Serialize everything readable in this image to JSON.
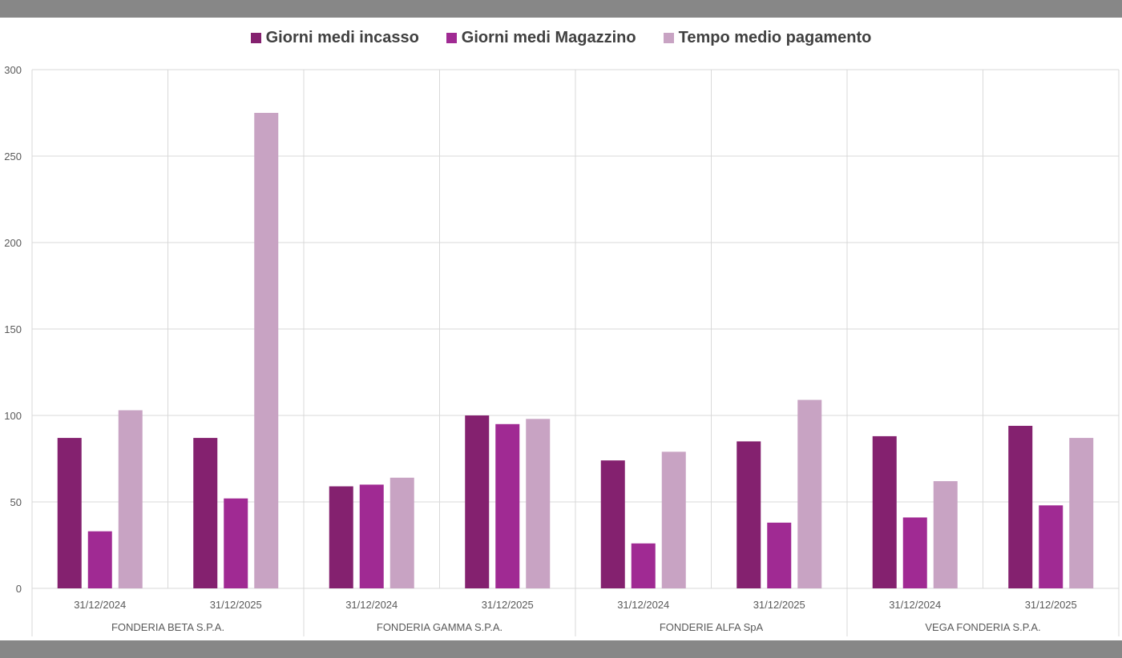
{
  "frame": {
    "bar_color": "#878787"
  },
  "legend": [
    {
      "name": "Giorni medi incasso",
      "color": "#84216f"
    },
    {
      "name": "Giorni medi Magazzino",
      "color": "#a02a93"
    },
    {
      "name": "Tempo medio pagamento",
      "color": "#c8a3c3"
    }
  ],
  "chart_data": {
    "type": "bar",
    "title": "",
    "xlabel": "",
    "ylabel": "",
    "ylim": [
      0,
      300
    ],
    "yticks": [
      0,
      50,
      100,
      150,
      200,
      250,
      300
    ],
    "grid": true,
    "legend_position": "top",
    "groups": [
      {
        "company": "FONDERIA BETA S.P.A.",
        "dates": [
          "31/12/2024",
          "31/12/2025"
        ]
      },
      {
        "company": "FONDERIA GAMMA S.P.A.",
        "dates": [
          "31/12/2024",
          "31/12/2025"
        ]
      },
      {
        "company": "FONDERIE ALFA SpA",
        "dates": [
          "31/12/2024",
          "31/12/2025"
        ]
      },
      {
        "company": "VEGA FONDERIA S.P.A.",
        "dates": [
          "31/12/2024",
          "31/12/2025"
        ]
      }
    ],
    "series": [
      {
        "name": "Giorni medi incasso",
        "color": "#84216f",
        "values": [
          87,
          87,
          59,
          100,
          74,
          85,
          88,
          94
        ]
      },
      {
        "name": "Giorni medi Magazzino",
        "color": "#a02a93",
        "values": [
          33,
          52,
          60,
          95,
          26,
          38,
          41,
          48
        ]
      },
      {
        "name": "Tempo medio pagamento",
        "color": "#c8a3c3",
        "values": [
          103,
          275,
          64,
          98,
          79,
          109,
          62,
          87
        ]
      }
    ]
  }
}
